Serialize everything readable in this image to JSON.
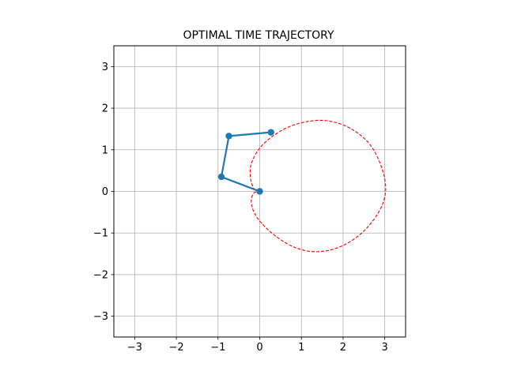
{
  "chart_data": {
    "type": "line",
    "title": "OPTIMAL TIME TRAJECTORY",
    "xlabel": "",
    "ylabel": "",
    "xlim": [
      -3.5,
      3.5
    ],
    "ylim": [
      -3.5,
      3.5
    ],
    "xticks": [
      -3,
      -2,
      -1,
      0,
      1,
      2,
      3
    ],
    "yticks": [
      -3,
      -2,
      -1,
      0,
      1,
      2,
      3
    ],
    "xtick_labels": [
      "−3",
      "−2",
      "−1",
      "0",
      "1",
      "2",
      "3"
    ],
    "ytick_labels": [
      "−3",
      "−2",
      "−1",
      "0",
      "1",
      "2",
      "3"
    ],
    "grid": true,
    "aspect": "equal",
    "series": [
      {
        "style": "solid line with circle markers",
        "color": "#1f77b4",
        "x": [
          0.0,
          -0.92,
          -0.74,
          0.27
        ],
        "y": [
          0.0,
          0.35,
          1.33,
          1.42
        ]
      },
      {
        "style": "dashed closed curve",
        "color": "#ff0000",
        "x": [
          0.0,
          -0.133,
          -0.225,
          -0.19,
          0.05,
          0.5,
          1.0,
          1.6,
          2.2,
          2.7,
          3.0,
          2.95,
          2.55,
          2.0,
          1.4,
          0.85,
          0.35,
          -0.05,
          -0.2,
          -0.15,
          0.0
        ],
        "y": [
          0.0,
          0.05,
          0.35,
          0.7,
          1.1,
          1.45,
          1.65,
          1.7,
          1.5,
          1.05,
          0.3,
          -0.3,
          -0.9,
          -1.3,
          -1.45,
          -1.35,
          -1.05,
          -0.65,
          -0.3,
          -0.05,
          0.0
        ]
      }
    ]
  }
}
